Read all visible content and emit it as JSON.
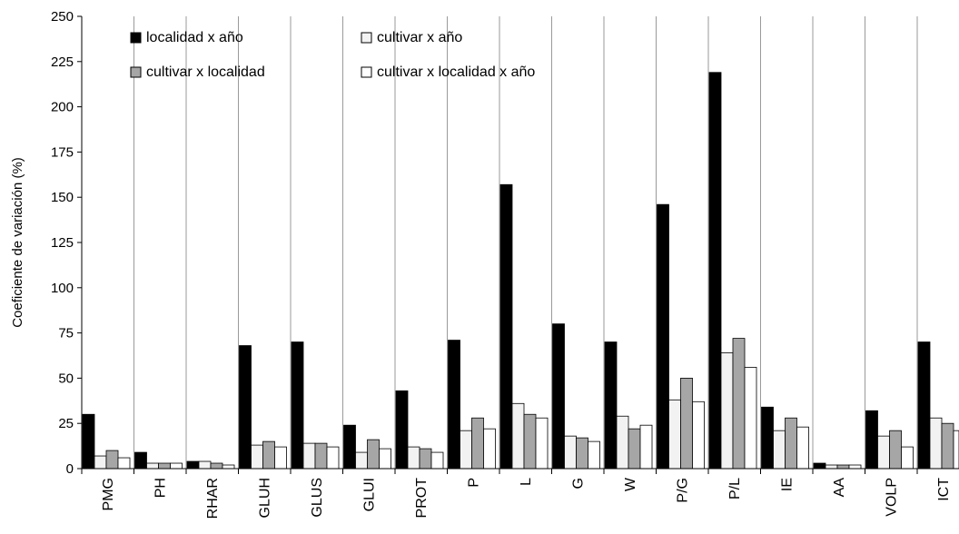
{
  "chart_data": {
    "type": "bar",
    "ylabel": "Coeficiente de variación (%)",
    "ylim": [
      0,
      250
    ],
    "yticks": [
      0,
      25,
      50,
      75,
      100,
      125,
      150,
      175,
      200,
      225,
      250
    ],
    "grid": "vertical category dividers",
    "legend_position": "top-left",
    "categories": [
      "PMG",
      "PH",
      "RHAR",
      "GLUH",
      "GLUS",
      "GLUI",
      "PROT",
      "P",
      "L",
      "G",
      "W",
      "P/G",
      "P/L",
      "IE",
      "AA",
      "VOLP",
      "ICT"
    ],
    "series": [
      {
        "name": "localidad x año",
        "color": "#000000",
        "values": [
          30,
          9,
          4,
          68,
          70,
          24,
          43,
          71,
          157,
          80,
          70,
          146,
          219,
          34,
          3,
          32,
          70
        ]
      },
      {
        "name": "cultivar x año",
        "color": "#f2f2f2",
        "values": [
          7,
          3,
          4,
          13,
          14,
          9,
          12,
          21,
          36,
          18,
          29,
          38,
          64,
          21,
          2,
          18,
          28
        ]
      },
      {
        "name": "cultivar x localidad",
        "color": "#a6a6a6",
        "values": [
          10,
          3,
          3,
          15,
          14,
          16,
          11,
          28,
          30,
          17,
          22,
          50,
          72,
          28,
          2,
          21,
          25
        ]
      },
      {
        "name": "cultivar x localidad x año",
        "color": "#ffffff",
        "values": [
          6,
          3,
          2,
          12,
          12,
          11,
          9,
          22,
          28,
          15,
          24,
          37,
          56,
          23,
          2,
          12,
          21
        ]
      }
    ]
  }
}
